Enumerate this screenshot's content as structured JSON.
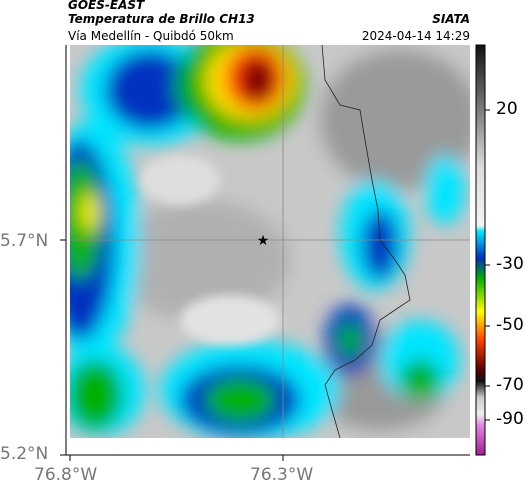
{
  "header": {
    "source": "GOES-EAST",
    "title": "Temperatura de Brillo CH13",
    "subtitle": "Vía Medellín - Quibdó 50km",
    "brand": "SIATA",
    "timestamp": "2024-04-14 14:29"
  },
  "axes": {
    "latitude": [
      "5.7°N",
      "5.2°N"
    ],
    "longitude": [
      "76.8°W",
      "76.3°W"
    ]
  },
  "colorbar": {
    "ticks": [
      20,
      -30,
      -50,
      -70,
      -90
    ]
  }
}
